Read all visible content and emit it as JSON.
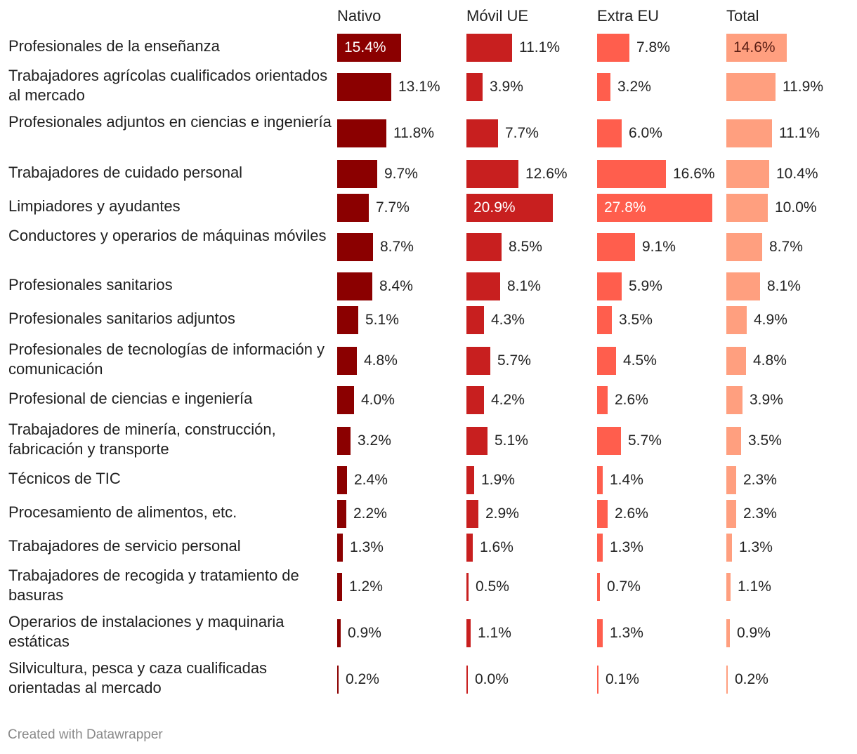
{
  "chart_data": {
    "type": "bar",
    "title": "",
    "series": [
      {
        "name": "Nativo",
        "color": "#8b0000",
        "values": [
          15.4,
          13.1,
          11.8,
          9.7,
          7.7,
          8.7,
          8.4,
          5.1,
          4.8,
          4.0,
          3.2,
          2.4,
          2.2,
          1.3,
          1.2,
          0.9,
          0.2
        ]
      },
      {
        "name": "Móvil UE",
        "color": "#c81f1f",
        "values": [
          11.1,
          3.9,
          7.7,
          12.6,
          20.9,
          8.5,
          8.1,
          4.3,
          5.7,
          4.2,
          5.1,
          1.9,
          2.9,
          1.6,
          0.5,
          1.1,
          0.0
        ]
      },
      {
        "name": "Extra EU",
        "color": "#ff5e4d",
        "values": [
          7.8,
          3.2,
          6.0,
          16.6,
          27.8,
          9.1,
          5.9,
          3.5,
          4.5,
          2.6,
          5.7,
          1.4,
          2.6,
          1.3,
          0.7,
          1.3,
          0.1
        ]
      },
      {
        "name": "Total",
        "color": "#ff9f7f",
        "values": [
          14.6,
          11.9,
          11.1,
          10.4,
          10.0,
          8.7,
          8.1,
          4.9,
          4.8,
          3.9,
          3.5,
          2.3,
          2.3,
          1.3,
          1.1,
          0.9,
          0.2
        ]
      }
    ],
    "value_labels": [
      [
        "15.4%",
        "13.1%",
        "11.8%",
        "9.7%",
        "7.7%",
        "8.7%",
        "8.4%",
        "5.1%",
        "4.8%",
        "4.0%",
        "3.2%",
        "2.4%",
        "2.2%",
        "1.3%",
        "1.2%",
        "0.9%",
        "0.2%"
      ],
      [
        "11.1%",
        "3.9%",
        "7.7%",
        "12.6%",
        "20.9%",
        "8.5%",
        "8.1%",
        "4.3%",
        "5.7%",
        "4.2%",
        "5.1%",
        "1.9%",
        "2.9%",
        "1.6%",
        "0.5%",
        "1.1%",
        "0.0%"
      ],
      [
        "7.8%",
        "3.2%",
        "6.0%",
        "16.6%",
        "27.8%",
        "9.1%",
        "5.9%",
        "3.5%",
        "4.5%",
        "2.6%",
        "5.7%",
        "1.4%",
        "2.6%",
        "1.3%",
        "0.7%",
        "1.3%",
        "0.1%"
      ],
      [
        "14.6%",
        "11.9%",
        "11.1%",
        "10.4%",
        "10.0%",
        "8.7%",
        "8.1%",
        "4.9%",
        "4.8%",
        "3.9%",
        "3.5%",
        "2.3%",
        "2.3%",
        "1.3%",
        "1.1%",
        "0.9%",
        "0.2%"
      ]
    ],
    "categories": [
      "Profesionales de la enseñanza",
      "Trabajadores agrícolas cualificados orientados al mercado",
      "Profesionales adjuntos en ciencias e ingeniería",
      "Trabajadores de cuidado personal",
      "Limpiadores y ayudantes",
      "Conductores y operarios de máquinas móviles",
      "Profesionales sanitarios",
      "Profesionales sanitarios adjuntos",
      "Profesionales de tecnologías de información y comunicación",
      "Profesional de ciencias e ingeniería",
      "Trabajadores de minería, construcción, fabricación y transporte",
      "Técnicos de TIC",
      "Procesamiento de alimentos, etc.",
      "Trabajadores de servicio personal",
      "Trabajadores de recogida y tratamiento de basuras",
      "Operarios de instalaciones y maquinaria estáticas",
      "Silvicultura, pesca y caza cualificadas orientadas al mercado"
    ],
    "max_value": 27.8,
    "legend": "column headers"
  },
  "footer": "Created with Datawrapper"
}
